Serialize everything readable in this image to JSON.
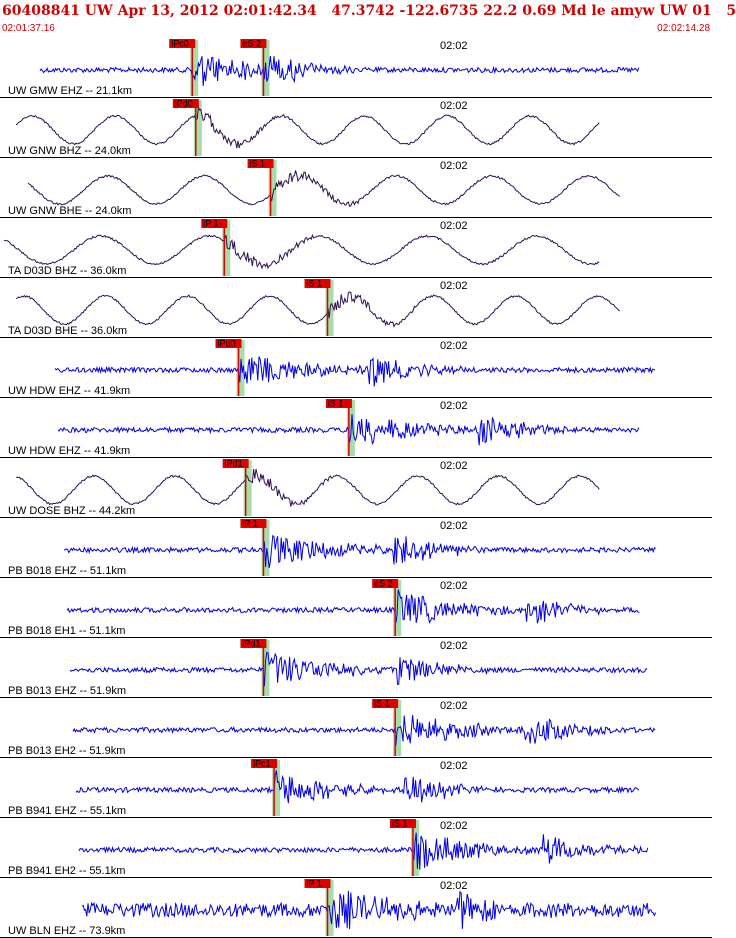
{
  "header": {
    "title": "60408841 UW Apr 13, 2012 02:01:42.34   47.3742 -122.6735 22.2 0.69 Md le amyw UW 01   5",
    "start_time": "02:01:37.16",
    "end_time": "02:02:14.28"
  },
  "minute_marker": "02:02",
  "colors": {
    "title": "#d00000",
    "short_period_trace": "#0000e0",
    "broadband_trace": "#301050",
    "pick_box": "#e00000",
    "pick_band": "#a8dca8",
    "divider": "#000000"
  },
  "traces": [
    {
      "label": "UW GMW EHZ -- 21.1km",
      "kind": "short_period",
      "picks": [
        {
          "text": "iPc0",
          "t": 0.27
        },
        {
          "text": "eS 2",
          "t": 0.37
        }
      ]
    },
    {
      "label": "UW GNW BHZ -- 24.0km",
      "kind": "broadband",
      "picks": [
        {
          "text": "iPd0",
          "t": 0.275
        }
      ]
    },
    {
      "label": "UW GNW BHE -- 24.0km",
      "kind": "broadband",
      "picks": [
        {
          "text": "iS 1",
          "t": 0.38
        }
      ]
    },
    {
      "label": "TA D03D BHZ -- 36.0km",
      "kind": "broadband",
      "picks": [
        {
          "text": "iP 1",
          "t": 0.315
        }
      ]
    },
    {
      "label": "TA D03D BHE -- 36.0km",
      "kind": "broadband",
      "picks": [
        {
          "text": "iS 1",
          "t": 0.46
        }
      ]
    },
    {
      "label": "UW HDW EHZ -- 41.9km",
      "kind": "short_period",
      "picks": [
        {
          "text": "iPd0",
          "t": 0.335
        }
      ]
    },
    {
      "label": "UW HDW EHZ -- 41.9km",
      "kind": "short_period",
      "picks": [
        {
          "text": "iS 1",
          "t": 0.49
        }
      ]
    },
    {
      "label": "UW DOSE BHZ -- 44.2km",
      "kind": "broadband",
      "picks": [
        {
          "text": "iPd1",
          "t": 0.345
        }
      ]
    },
    {
      "label": "PB B018 EHZ -- 51.1km",
      "kind": "short_period",
      "picks": [
        {
          "text": "iP 1",
          "t": 0.37
        }
      ]
    },
    {
      "label": "PB B018 EH1 -- 51.1km",
      "kind": "short_period",
      "picks": [
        {
          "text": "eS 2",
          "t": 0.555
        }
      ]
    },
    {
      "label": "PB B013 EHZ -- 51.9km",
      "kind": "short_period",
      "picks": [
        {
          "text": "iPd1",
          "t": 0.37
        }
      ]
    },
    {
      "label": "PB B013 EH2 -- 51.9km",
      "kind": "short_period",
      "picks": [
        {
          "text": "iS 1",
          "t": 0.555
        }
      ]
    },
    {
      "label": "PB B941 EHZ -- 55.1km",
      "kind": "short_period",
      "picks": [
        {
          "text": "iPc1",
          "t": 0.385
        }
      ]
    },
    {
      "label": "PB B941 EH2 -- 55.1km",
      "kind": "short_period",
      "picks": [
        {
          "text": "iS 1",
          "t": 0.58
        }
      ]
    },
    {
      "label": "UW BLN EHZ -- 73.9km",
      "kind": "short_period",
      "picks": [
        {
          "text": "iP 1",
          "t": 0.46
        }
      ]
    }
  ]
}
